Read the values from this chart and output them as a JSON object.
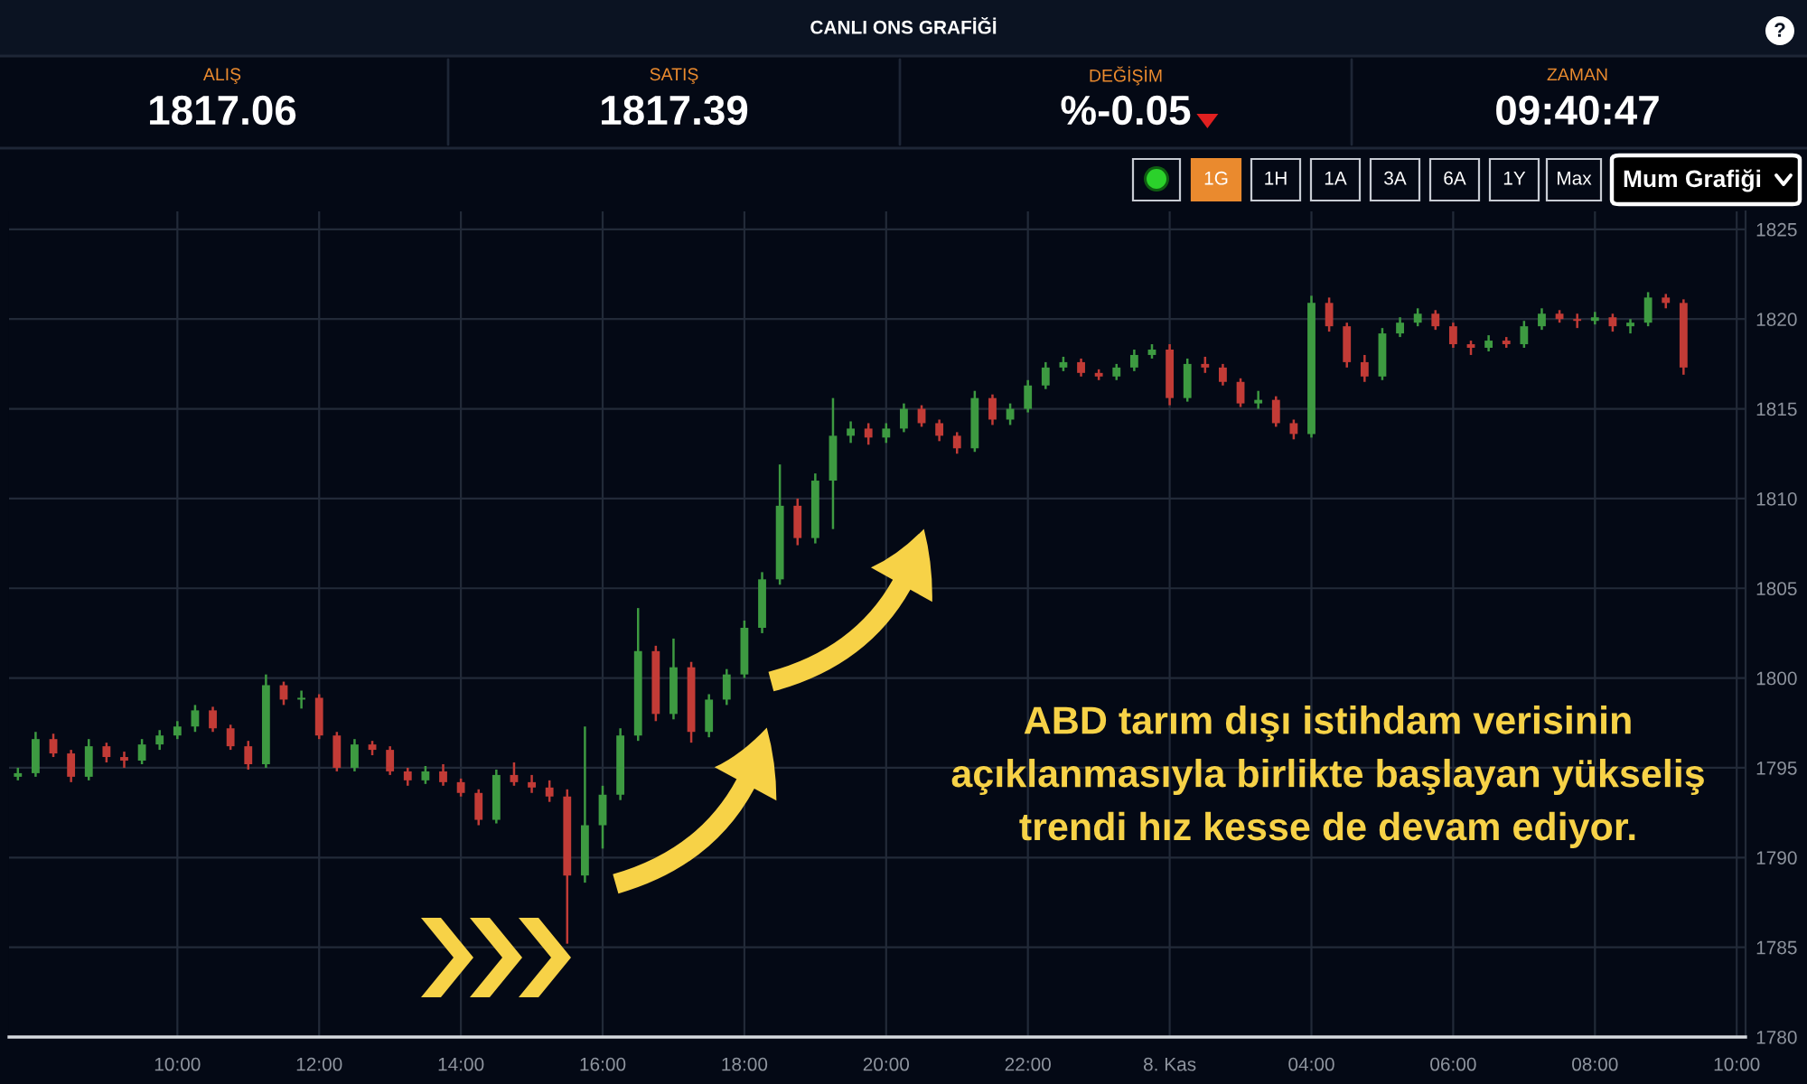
{
  "chart_data": {
    "type": "candlestick",
    "title": "CANLI ONS GRAFİĞİ",
    "annotations": [
      "ALIŞ",
      "1817.06",
      "SATIŞ",
      "1817.39",
      "DEĞİŞİM",
      "%-0.05",
      "ZAMAN",
      "09:40:47",
      "1G",
      "1H",
      "1A",
      "3A",
      "6A",
      "1Y",
      "Max",
      "Mum Grafiği",
      "?",
      "ABD tarım dışı istihdam verisinin\naçıklanmasıyla birlikte başlayan yükseliş\ntrendi hız kesse de devam ediyor."
    ],
    "categories": [
      null,
      null,
      null,
      null,
      null,
      null,
      null,
      null,
      null,
      "10:00",
      null,
      null,
      null,
      null,
      null,
      null,
      null,
      "12:00",
      null,
      null,
      null,
      null,
      null,
      null,
      null,
      "14:00",
      null,
      null,
      null,
      null,
      null,
      null,
      null,
      "16:00",
      null,
      null,
      null,
      null,
      null,
      null,
      null,
      "18:00",
      null,
      null,
      null,
      null,
      null,
      null,
      null,
      "20:00",
      null,
      null,
      null,
      null,
      null,
      null,
      null,
      "22:00",
      null,
      null,
      null,
      null,
      null,
      null,
      null,
      "8. Kas",
      null,
      null,
      null,
      null,
      null,
      null,
      null,
      "04:00",
      null,
      null,
      null,
      null,
      null,
      null,
      null,
      "06:00",
      null,
      null,
      null,
      null,
      null,
      null,
      null,
      "08:00",
      null,
      null,
      null,
      null,
      null,
      null,
      null,
      "10:00"
    ],
    "ohlc": [
      [
        1794.5,
        1795.0,
        1794.3,
        1794.7
      ],
      [
        1794.7,
        1797.0,
        1794.5,
        1796.6
      ],
      [
        1796.6,
        1796.9,
        1795.6,
        1795.8
      ],
      [
        1795.8,
        1796.0,
        1794.2,
        1794.5
      ],
      [
        1794.5,
        1796.6,
        1794.3,
        1796.2
      ],
      [
        1796.2,
        1796.4,
        1795.3,
        1795.6
      ],
      [
        1795.6,
        1795.9,
        1795.0,
        1795.4
      ],
      [
        1795.4,
        1796.6,
        1795.2,
        1796.3
      ],
      [
        1796.3,
        1797.1,
        1796.0,
        1796.8
      ],
      [
        1796.8,
        1797.6,
        1796.6,
        1797.3
      ],
      [
        1797.3,
        1798.5,
        1797.0,
        1798.2
      ],
      [
        1798.2,
        1798.4,
        1797.0,
        1797.2
      ],
      [
        1797.2,
        1797.4,
        1796.0,
        1796.2
      ],
      [
        1796.2,
        1796.5,
        1794.9,
        1795.2
      ],
      [
        1795.2,
        1800.2,
        1795.0,
        1799.6
      ],
      [
        1799.6,
        1799.8,
        1798.5,
        1798.8
      ],
      [
        1798.8,
        1799.3,
        1798.3,
        1798.9
      ],
      [
        1798.9,
        1799.1,
        1796.6,
        1796.8
      ],
      [
        1796.8,
        1797.0,
        1794.8,
        1795.0
      ],
      [
        1795.0,
        1796.6,
        1794.8,
        1796.3
      ],
      [
        1796.3,
        1796.5,
        1795.7,
        1796.0
      ],
      [
        1796.0,
        1796.2,
        1794.6,
        1794.8
      ],
      [
        1794.8,
        1795.0,
        1794.0,
        1794.3
      ],
      [
        1794.3,
        1795.1,
        1794.1,
        1794.8
      ],
      [
        1794.8,
        1795.2,
        1794.0,
        1794.2
      ],
      [
        1794.2,
        1794.4,
        1793.4,
        1793.6
      ],
      [
        1793.6,
        1793.8,
        1791.8,
        1792.1
      ],
      [
        1792.1,
        1794.9,
        1791.9,
        1794.6
      ],
      [
        1794.6,
        1795.3,
        1794.0,
        1794.2
      ],
      [
        1794.2,
        1794.6,
        1793.6,
        1793.9
      ],
      [
        1793.9,
        1794.3,
        1793.1,
        1793.4
      ],
      [
        1793.4,
        1793.8,
        1785.2,
        1789.0
      ],
      [
        1789.0,
        1797.3,
        1788.6,
        1791.8
      ],
      [
        1791.8,
        1794.0,
        1790.5,
        1793.5
      ],
      [
        1793.5,
        1797.2,
        1793.2,
        1796.8
      ],
      [
        1796.8,
        1803.9,
        1796.5,
        1801.5
      ],
      [
        1801.5,
        1801.8,
        1797.6,
        1798.0
      ],
      [
        1798.0,
        1802.2,
        1797.7,
        1800.6
      ],
      [
        1800.6,
        1800.9,
        1796.4,
        1797.0
      ],
      [
        1797.0,
        1799.1,
        1796.7,
        1798.8
      ],
      [
        1798.8,
        1800.5,
        1798.5,
        1800.2
      ],
      [
        1800.2,
        1803.2,
        1800.0,
        1802.8
      ],
      [
        1802.8,
        1805.9,
        1802.5,
        1805.5
      ],
      [
        1805.5,
        1811.9,
        1805.2,
        1809.6
      ],
      [
        1809.6,
        1810.0,
        1807.4,
        1807.8
      ],
      [
        1807.8,
        1811.4,
        1807.5,
        1811.0
      ],
      [
        1811.0,
        1815.6,
        1808.3,
        1813.5
      ],
      [
        1813.5,
        1814.3,
        1813.1,
        1813.9
      ],
      [
        1813.9,
        1814.2,
        1813.0,
        1813.4
      ],
      [
        1813.4,
        1814.2,
        1813.1,
        1813.9
      ],
      [
        1813.9,
        1815.3,
        1813.7,
        1815.0
      ],
      [
        1815.0,
        1815.2,
        1814.0,
        1814.2
      ],
      [
        1814.2,
        1814.4,
        1813.2,
        1813.5
      ],
      [
        1813.5,
        1813.7,
        1812.5,
        1812.8
      ],
      [
        1812.8,
        1816.0,
        1812.6,
        1815.6
      ],
      [
        1815.6,
        1815.8,
        1814.1,
        1814.4
      ],
      [
        1814.4,
        1815.3,
        1814.1,
        1815.0
      ],
      [
        1815.0,
        1816.6,
        1814.8,
        1816.3
      ],
      [
        1816.3,
        1817.6,
        1816.1,
        1817.3
      ],
      [
        1817.3,
        1817.9,
        1817.1,
        1817.6
      ],
      [
        1817.6,
        1817.8,
        1816.8,
        1817.0
      ],
      [
        1817.0,
        1817.2,
        1816.6,
        1816.8
      ],
      [
        1816.8,
        1817.5,
        1816.6,
        1817.3
      ],
      [
        1817.3,
        1818.3,
        1817.1,
        1818.0
      ],
      [
        1818.0,
        1818.6,
        1817.8,
        1818.3
      ],
      [
        1818.3,
        1818.6,
        1815.2,
        1815.6
      ],
      [
        1815.6,
        1817.8,
        1815.4,
        1817.5
      ],
      [
        1817.5,
        1817.9,
        1817.0,
        1817.3
      ],
      [
        1817.3,
        1817.5,
        1816.3,
        1816.5
      ],
      [
        1816.5,
        1816.7,
        1815.1,
        1815.3
      ],
      [
        1815.3,
        1816.0,
        1815.0,
        1815.5
      ],
      [
        1815.5,
        1815.7,
        1814.0,
        1814.2
      ],
      [
        1814.2,
        1814.4,
        1813.3,
        1813.6
      ],
      [
        1813.6,
        1821.3,
        1813.4,
        1820.9
      ],
      [
        1820.9,
        1821.2,
        1819.3,
        1819.6
      ],
      [
        1819.6,
        1819.8,
        1817.3,
        1817.6
      ],
      [
        1817.6,
        1818.0,
        1816.5,
        1816.8
      ],
      [
        1816.8,
        1819.5,
        1816.6,
        1819.2
      ],
      [
        1819.2,
        1820.1,
        1819.0,
        1819.8
      ],
      [
        1819.8,
        1820.6,
        1819.6,
        1820.3
      ],
      [
        1820.3,
        1820.5,
        1819.4,
        1819.6
      ],
      [
        1819.6,
        1819.8,
        1818.4,
        1818.6
      ],
      [
        1818.6,
        1818.8,
        1818.0,
        1818.4
      ],
      [
        1818.4,
        1819.1,
        1818.2,
        1818.8
      ],
      [
        1818.8,
        1819.0,
        1818.4,
        1818.6
      ],
      [
        1818.6,
        1819.9,
        1818.4,
        1819.6
      ],
      [
        1819.6,
        1820.6,
        1819.4,
        1820.3
      ],
      [
        1820.3,
        1820.5,
        1819.8,
        1820.0
      ],
      [
        1820.0,
        1820.3,
        1819.5,
        1819.9
      ],
      [
        1819.9,
        1820.4,
        1819.7,
        1820.1
      ],
      [
        1820.1,
        1820.3,
        1819.3,
        1819.6
      ],
      [
        1819.6,
        1820.0,
        1819.2,
        1819.8
      ],
      [
        1819.8,
        1821.5,
        1819.6,
        1821.2
      ],
      [
        1821.2,
        1821.4,
        1820.6,
        1820.9
      ],
      [
        1820.9,
        1821.1,
        1816.9,
        1817.3
      ],
      null,
      null,
      null
    ],
    "colors": [
      "#3d9a41",
      "#3d9a41",
      "#c23b36",
      "#c23b36",
      "#3d9a41",
      "#c23b36",
      "#c23b36",
      "#3d9a41",
      "#3d9a41",
      "#3d9a41",
      "#3d9a41",
      "#c23b36",
      "#c23b36",
      "#c23b36",
      "#3d9a41",
      "#c23b36",
      "#3d9a41",
      "#c23b36",
      "#c23b36",
      "#3d9a41",
      "#c23b36",
      "#c23b36",
      "#c23b36",
      "#3d9a41",
      "#c23b36",
      "#c23b36",
      "#c23b36",
      "#3d9a41",
      "#c23b36",
      "#c23b36",
      "#c23b36",
      "#c23b36",
      "#3d9a41",
      "#3d9a41",
      "#3d9a41",
      "#3d9a41",
      "#c23b36",
      "#3d9a41",
      "#c23b36",
      "#3d9a41",
      "#3d9a41",
      "#3d9a41",
      "#3d9a41",
      "#3d9a41",
      "#c23b36",
      "#3d9a41",
      "#3d9a41",
      "#3d9a41",
      "#c23b36",
      "#3d9a41",
      "#3d9a41",
      "#c23b36",
      "#c23b36",
      "#c23b36",
      "#3d9a41",
      "#c23b36",
      "#3d9a41",
      "#3d9a41",
      "#3d9a41",
      "#3d9a41",
      "#c23b36",
      "#c23b36",
      "#3d9a41",
      "#3d9a41",
      "#3d9a41",
      "#c23b36",
      "#3d9a41",
      "#c23b36",
      "#c23b36",
      "#c23b36",
      "#3d9a41",
      "#c23b36",
      "#c23b36",
      "#3d9a41",
      "#c23b36",
      "#c23b36",
      "#c23b36",
      "#3d9a41",
      "#3d9a41",
      "#3d9a41",
      "#c23b36",
      "#c23b36",
      "#c23b36",
      "#3d9a41",
      "#c23b36",
      "#3d9a41",
      "#3d9a41",
      "#c23b36",
      "#c23b36",
      "#3d9a41",
      "#c23b36",
      "#3d9a41",
      "#3d9a41",
      "#c23b36",
      "#c23b36",
      null,
      null,
      null
    ],
    "ylim": [
      1780,
      1826
    ],
    "yticks": [
      1780,
      1785,
      1790,
      1795,
      1800,
      1805,
      1810,
      1815,
      1820,
      1825
    ],
    "grid": true
  }
}
